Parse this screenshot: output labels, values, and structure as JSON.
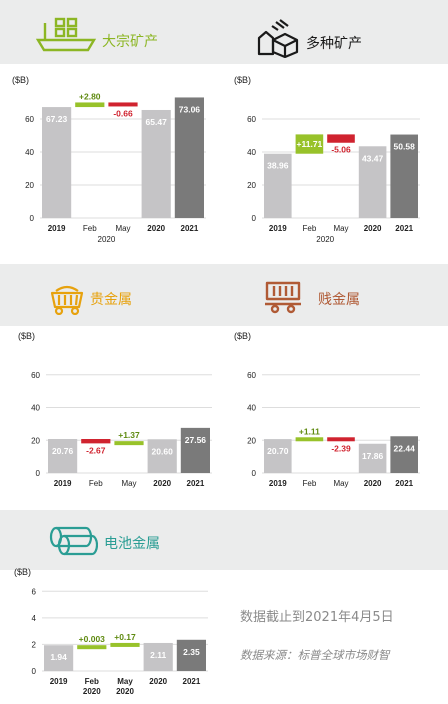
{
  "sections": {
    "bulk": {
      "title": "大宗矿产",
      "color": "#8cb624",
      "icon": "ship-icon"
    },
    "diversified": {
      "title": "多种矿产",
      "color": "#1a1a1a",
      "icon": "mineral-blocks-icon"
    },
    "precious": {
      "title": "贵金属",
      "color": "#e7a20e",
      "icon": "mine-cart-gold-icon"
    },
    "base": {
      "title": "贱金属",
      "color": "#b05a35",
      "icon": "mine-cart-copper-icon"
    },
    "battery": {
      "title": "电池金属",
      "color": "#2a9d94",
      "icon": "battery-cells-icon"
    }
  },
  "colors": {
    "bar_light": "#c5c4c6",
    "bar_dark": "#7a7a7a",
    "increase": "#98c22a",
    "decrease": "#d0232f",
    "axis_text": "#222222",
    "grid": "#dddddd"
  },
  "chart_data": [
    {
      "id": "bulk",
      "type": "bar",
      "subtype": "waterfall",
      "ylabel": "($B)",
      "ylim": [
        0,
        80
      ],
      "yticks": [
        0,
        20,
        40,
        60
      ],
      "categories": [
        "2019",
        "Feb",
        "May",
        "2020",
        "2021"
      ],
      "group_label": "2020",
      "values": [
        67.23,
        2.8,
        -0.66,
        65.47,
        73.06
      ],
      "labels": [
        "67.23",
        "+2.80",
        "-0.66",
        "65.47",
        "73.06"
      ]
    },
    {
      "id": "diversified",
      "type": "bar",
      "subtype": "waterfall",
      "ylabel": "($B)",
      "ylim": [
        0,
        80
      ],
      "yticks": [
        0,
        20,
        40,
        60
      ],
      "categories": [
        "2019",
        "Feb",
        "May",
        "2020",
        "2021"
      ],
      "group_label": "2020",
      "values": [
        38.96,
        11.71,
        -5.06,
        43.47,
        50.58
      ],
      "labels": [
        "38.96",
        "+11.71",
        "-5.06",
        "43.47",
        "50.58"
      ]
    },
    {
      "id": "precious",
      "type": "bar",
      "subtype": "waterfall",
      "ylabel": "($B)",
      "ylim": [
        0,
        80
      ],
      "yticks": [
        0,
        20,
        40,
        60
      ],
      "categories": [
        "2019",
        "Feb",
        "May",
        "2020",
        "2021"
      ],
      "group_label": "",
      "values": [
        20.76,
        -2.67,
        1.37,
        20.6,
        27.56
      ],
      "labels": [
        "20.76",
        "-2.67",
        "+1.37",
        "20.60",
        "27.56"
      ]
    },
    {
      "id": "base",
      "type": "bar",
      "subtype": "waterfall",
      "ylabel": "($B)",
      "ylim": [
        0,
        80
      ],
      "yticks": [
        0,
        20,
        40,
        60
      ],
      "categories": [
        "2019",
        "Feb",
        "May",
        "2020",
        "2021"
      ],
      "group_label": "",
      "values": [
        20.7,
        1.11,
        -2.39,
        17.86,
        22.44
      ],
      "labels": [
        "20.70",
        "+1.11",
        "-2.39",
        "17.86",
        "22.44"
      ]
    },
    {
      "id": "battery",
      "type": "bar",
      "subtype": "waterfall",
      "ylabel": "($B)",
      "ylim": [
        0,
        7
      ],
      "yticks": [
        0,
        2,
        4,
        6
      ],
      "categories": [
        "2019",
        "Feb\n2020",
        "May\n2020",
        "2020",
        "2021"
      ],
      "group_label": "",
      "values": [
        1.94,
        0.003,
        0.17,
        2.11,
        2.35
      ],
      "labels": [
        "1.94",
        "+0.003",
        "+0.17",
        "2.11",
        "2.35"
      ]
    }
  ],
  "notes": {
    "data_as_of": "数据截止到2021年4月5日",
    "source": "数据来源：标普全球市场财智"
  }
}
